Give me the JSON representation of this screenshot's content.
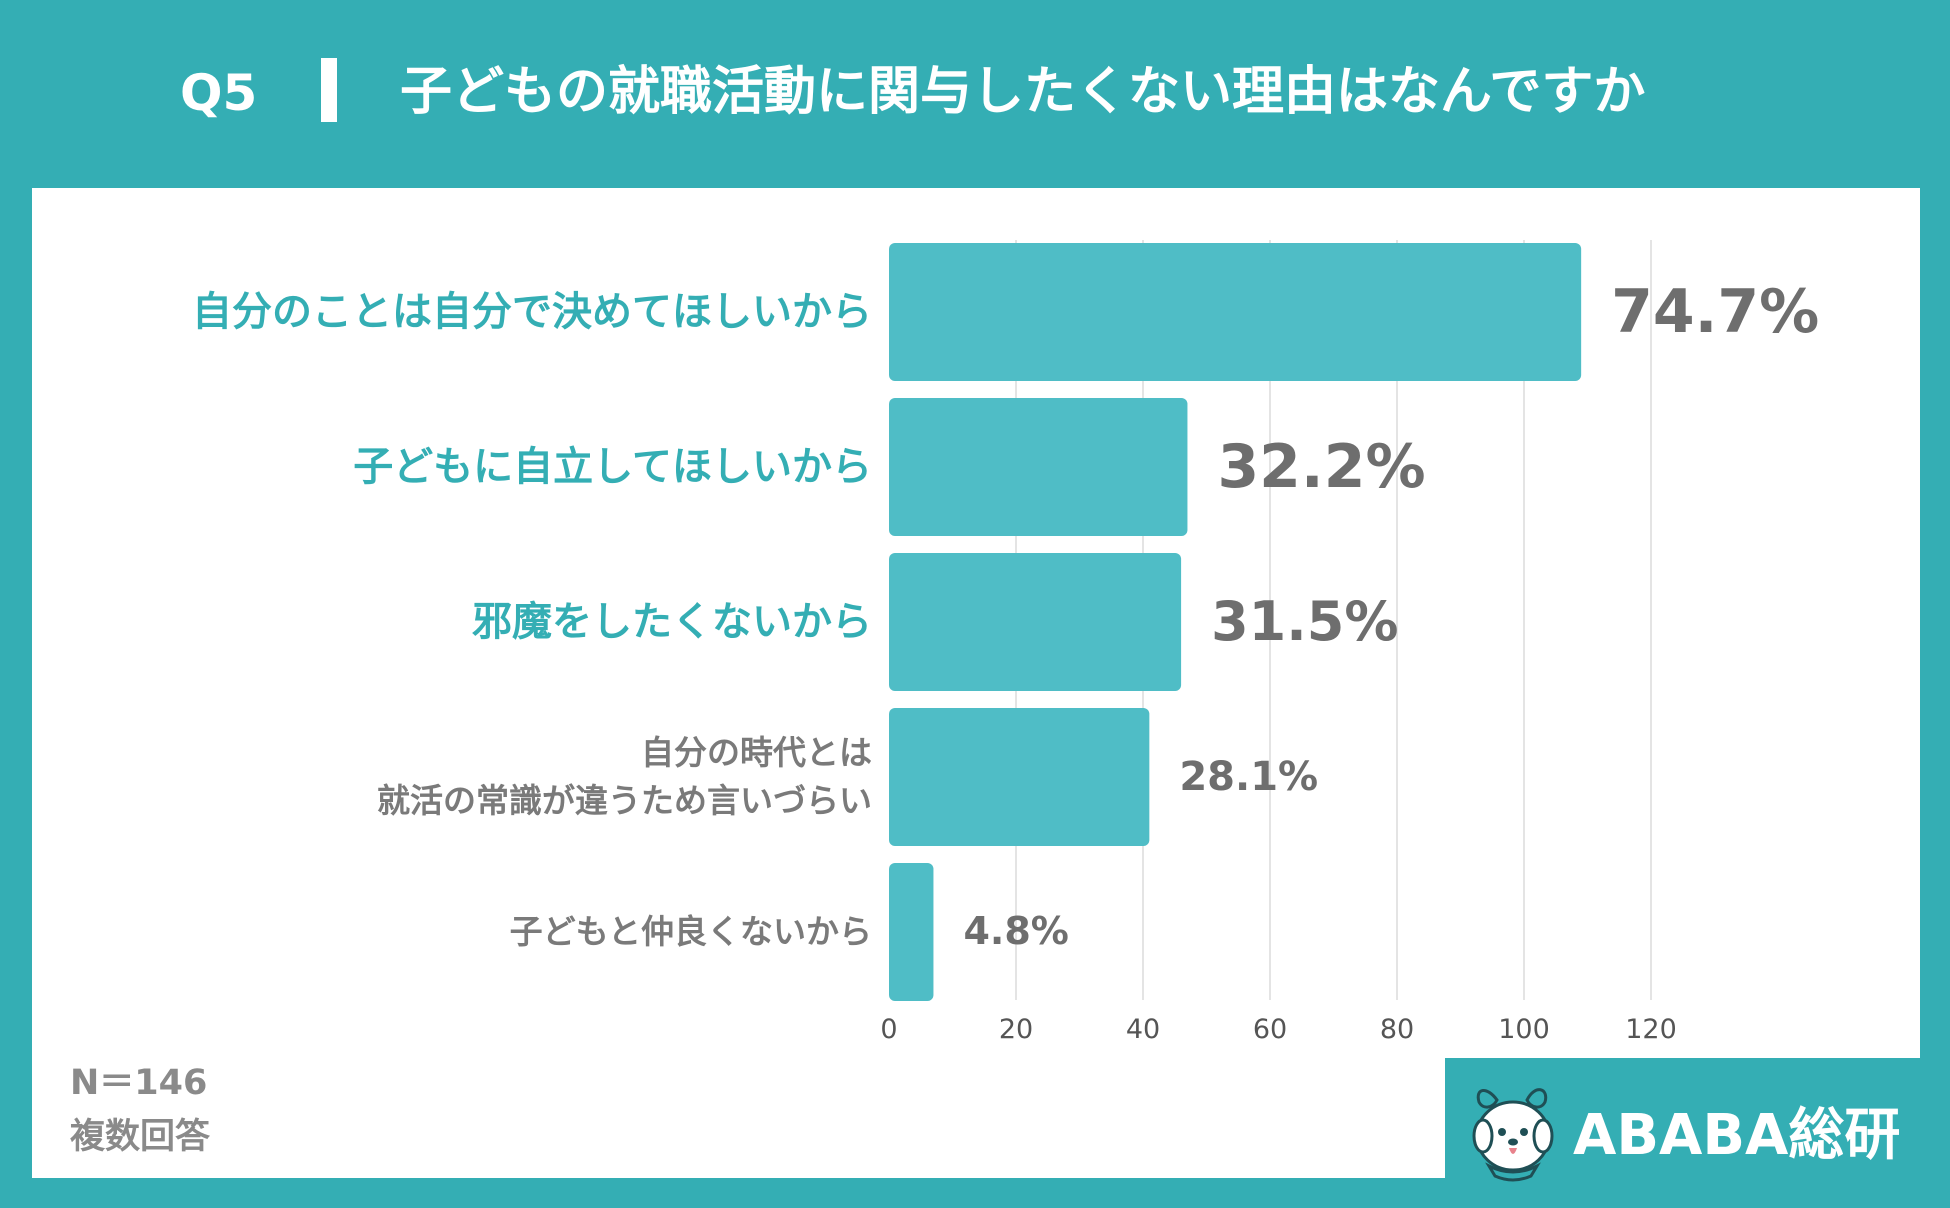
{
  "header": {
    "question_number": "Q5",
    "title": "子どもの就職活動に関与したくない理由はなんですか"
  },
  "chart_data": {
    "type": "bar",
    "orientation": "horizontal",
    "categories": [
      "自分のことは自分で決めてほしいから",
      "子どもに自立してほしいから",
      "邪魔をしたくないから",
      "自分の時代とは\n就活の常識が違うため言いづらい",
      "子どもと仲良くないから"
    ],
    "values": [
      109,
      47,
      46,
      41,
      7
    ],
    "value_labels": [
      "74.7%",
      "32.2%",
      "31.5%",
      "28.1%",
      "4.8%"
    ],
    "xlim": [
      0,
      120
    ],
    "xticks": [
      "0",
      "20",
      "40",
      "60",
      "80",
      "100",
      "120"
    ],
    "grid": true,
    "bar_color": "#4fbdc6",
    "highlight_color": "#34aeb4",
    "label_color": "#7a7a7a"
  },
  "notes": {
    "sample": "N＝146",
    "type": "複数回答"
  },
  "logo": {
    "text": "ABABA総研",
    "icon": "dog-mascot-icon"
  }
}
